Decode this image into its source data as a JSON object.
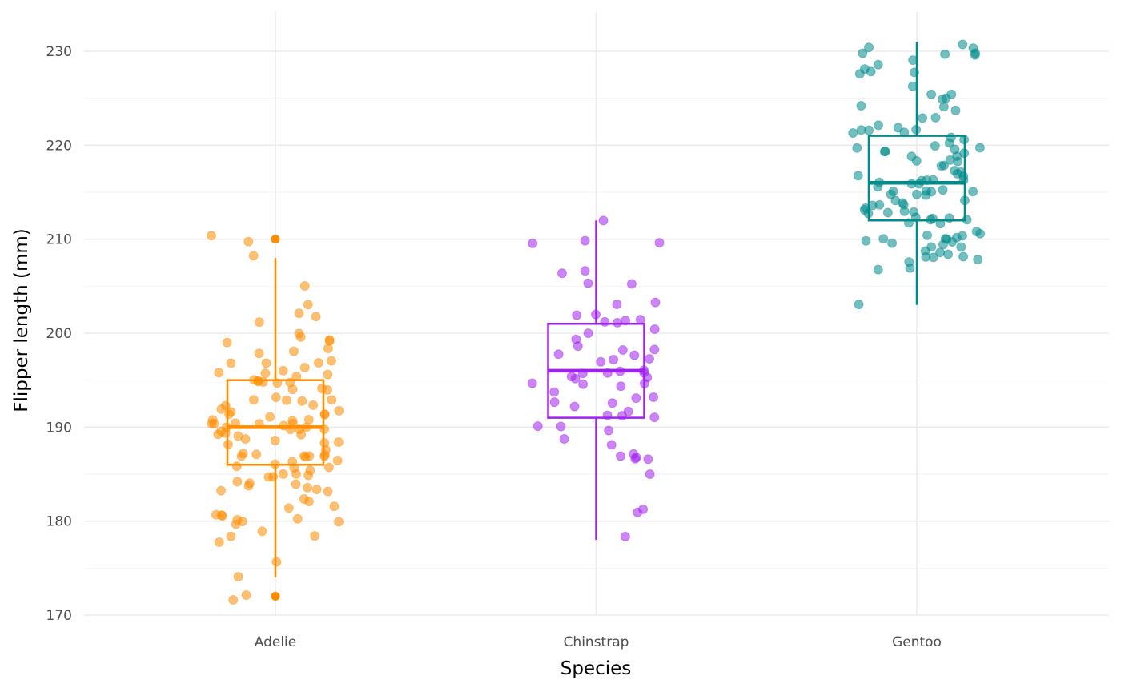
{
  "chart_data": {
    "type": "box",
    "title": "",
    "xlabel": "Species",
    "ylabel": "Flipper length (mm)",
    "ylim": [
      169,
      233
    ],
    "yticks": [
      170,
      180,
      190,
      200,
      210,
      220,
      230
    ],
    "grid": true,
    "legend": "none",
    "categories": [
      "Adelie",
      "Chinstrap",
      "Gentoo"
    ],
    "series": [
      {
        "name": "Adelie",
        "color": "#FF8C00",
        "box": {
          "lower_whisker": 174,
          "q1": 186,
          "median": 190,
          "q3": 195,
          "upper_whisker": 208
        },
        "outliers": [
          210,
          172
        ],
        "points": [
          210,
          210,
          205,
          208,
          203,
          202,
          202,
          201,
          200,
          200,
          199,
          199,
          199,
          198,
          198,
          198,
          197,
          197,
          197,
          197,
          196,
          196,
          196,
          196,
          196,
          195,
          195,
          195,
          195,
          195,
          195,
          195,
          194,
          194,
          194,
          193,
          193,
          193,
          193,
          193,
          192,
          192,
          192,
          192,
          192,
          191,
          191,
          191,
          191,
          191,
          191,
          191,
          190,
          190,
          190,
          190,
          190,
          190,
          190,
          190,
          190,
          190,
          190,
          190,
          189,
          189,
          189,
          189,
          189,
          189,
          188,
          188,
          188,
          188,
          187,
          187,
          187,
          187,
          187,
          187,
          187,
          187,
          186,
          186,
          186,
          186,
          186,
          186,
          185,
          185,
          185,
          185,
          185,
          185,
          184,
          184,
          184,
          184,
          184,
          183,
          183,
          183,
          182,
          182,
          182,
          181,
          181,
          181,
          181,
          180,
          180,
          180,
          180,
          180,
          179,
          178,
          178,
          178,
          176,
          174,
          172,
          172
        ]
      },
      {
        "name": "Chinstrap",
        "color": "#A020F0",
        "box": {
          "lower_whisker": 178,
          "q1": 191,
          "median": 196,
          "q3": 201,
          "upper_whisker": 212
        },
        "outliers": [],
        "points": [
          212,
          210,
          210,
          210,
          207,
          206,
          205,
          205,
          203,
          203,
          202,
          202,
          201,
          201,
          201,
          201,
          200,
          200,
          199,
          199,
          198,
          198,
          198,
          198,
          197,
          197,
          197,
          196,
          196,
          196,
          196,
          196,
          195,
          195,
          195,
          195,
          195,
          195,
          194,
          194,
          193,
          193,
          193,
          193,
          192,
          192,
          191,
          191,
          191,
          190,
          190,
          190,
          189,
          188,
          187,
          187,
          187,
          187,
          187,
          185,
          181,
          181,
          178
        ]
      },
      {
        "name": "Gentoo",
        "color": "#008B8B",
        "box": {
          "lower_whisker": 203,
          "q1": 212,
          "median": 216,
          "q3": 221,
          "upper_whisker": 231
        },
        "outliers": [],
        "points": [
          231,
          230,
          230,
          230,
          230,
          230,
          230,
          229,
          229,
          228,
          228,
          228,
          228,
          226,
          225,
          225,
          225,
          225,
          224,
          224,
          224,
          223,
          223,
          222,
          222,
          222,
          222,
          222,
          221,
          221,
          221,
          221,
          220,
          220,
          220,
          220,
          220,
          219,
          219,
          219,
          219,
          219,
          218,
          218,
          218,
          218,
          218,
          217,
          217,
          217,
          217,
          217,
          216,
          216,
          216,
          216,
          216,
          216,
          216,
          216,
          215,
          215,
          215,
          215,
          215,
          215,
          215,
          215,
          214,
          214,
          214,
          214,
          214,
          214,
          213,
          213,
          213,
          213,
          213,
          213,
          212,
          212,
          212,
          212,
          212,
          212,
          212,
          211,
          211,
          210,
          210,
          210,
          210,
          210,
          210,
          210,
          210,
          210,
          209,
          209,
          209,
          209,
          209,
          208,
          208,
          208,
          208,
          208,
          208,
          207,
          207,
          203
        ]
      }
    ]
  }
}
